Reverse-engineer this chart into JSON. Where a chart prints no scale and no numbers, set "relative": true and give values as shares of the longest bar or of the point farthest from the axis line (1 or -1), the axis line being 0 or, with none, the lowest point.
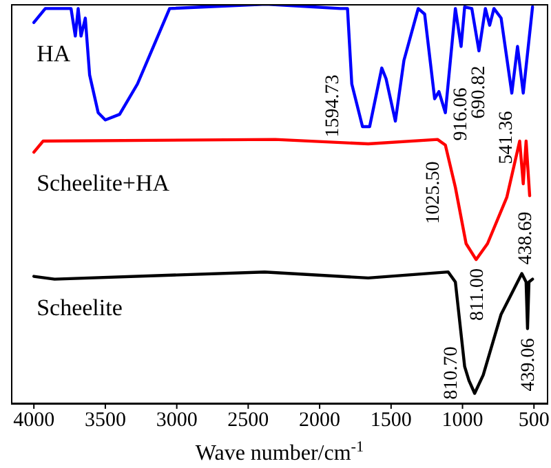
{
  "chart_data": {
    "type": "line",
    "xlabel": "Wave number/cm$^{-1}$",
    "relative": true,
    "marker": "none",
    "line_style": "solid",
    "xlim": [
      4160,
      400
    ],
    "xticks": [
      4000,
      3500,
      3000,
      2500,
      2000,
      1500,
      1000,
      500
    ],
    "series": [
      {
        "name": "HA",
        "color": "#0000ff",
        "x": [
          4000,
          3920,
          3740,
          3710,
          3690,
          3670,
          3640,
          3610,
          3550,
          3500,
          3400,
          3275,
          3150,
          3050,
          2375,
          1855,
          1805,
          1775,
          1700,
          1650,
          1565,
          1535,
          1470,
          1410,
          1310,
          1265,
          1195,
          1165,
          1120,
          1050,
          1010,
          985,
          935,
          885,
          840,
          810,
          780,
          730,
          655,
          615,
          575,
          510
        ],
        "values": [
          0.954,
          0.989,
          0.989,
          0.92,
          0.989,
          0.92,
          0.965,
          0.823,
          0.728,
          0.71,
          0.724,
          0.8,
          0.905,
          0.989,
          1,
          0.989,
          0.989,
          0.8,
          0.693,
          0.693,
          0.84,
          0.813,
          0.707,
          0.859,
          0.989,
          0.975,
          0.763,
          0.781,
          0.728,
          0.989,
          0.894,
          0.993,
          0.989,
          0.883,
          0.989,
          0.947,
          0.989,
          0.965,
          0.777,
          0.894,
          0.777,
          0.993
        ]
      },
      {
        "name": "Scheelite+HA",
        "color": "#ff0000",
        "x": [
          4000,
          3935,
          2310,
          1660,
          1175,
          1120,
          1050,
          975,
          905,
          825,
          690,
          600,
          575,
          555,
          530
        ],
        "values": [
          0.629,
          0.657,
          0.661,
          0.65,
          0.661,
          0.647,
          0.541,
          0.4,
          0.36,
          0.4,
          0.516,
          0.657,
          0.55,
          0.657,
          0.52
        ]
      },
      {
        "name": "Scheelite",
        "color": "#000000",
        "x": [
          4000,
          3855,
          2385,
          1660,
          1100,
          1050,
          985,
          955,
          915,
          855,
          730,
          585,
          555,
          545,
          535,
          510
        ],
        "values": [
          0.318,
          0.311,
          0.329,
          0.314,
          0.329,
          0.304,
          0.092,
          0.057,
          0.025,
          0.071,
          0.223,
          0.325,
          0.304,
          0.187,
          0.304,
          0.311
        ]
      }
    ],
    "annotations": [
      "1594.73",
      "916.06",
      "690.82",
      "541.36",
      "1025.50",
      "811.00",
      "438.69",
      "810.70",
      "439.06"
    ]
  }
}
